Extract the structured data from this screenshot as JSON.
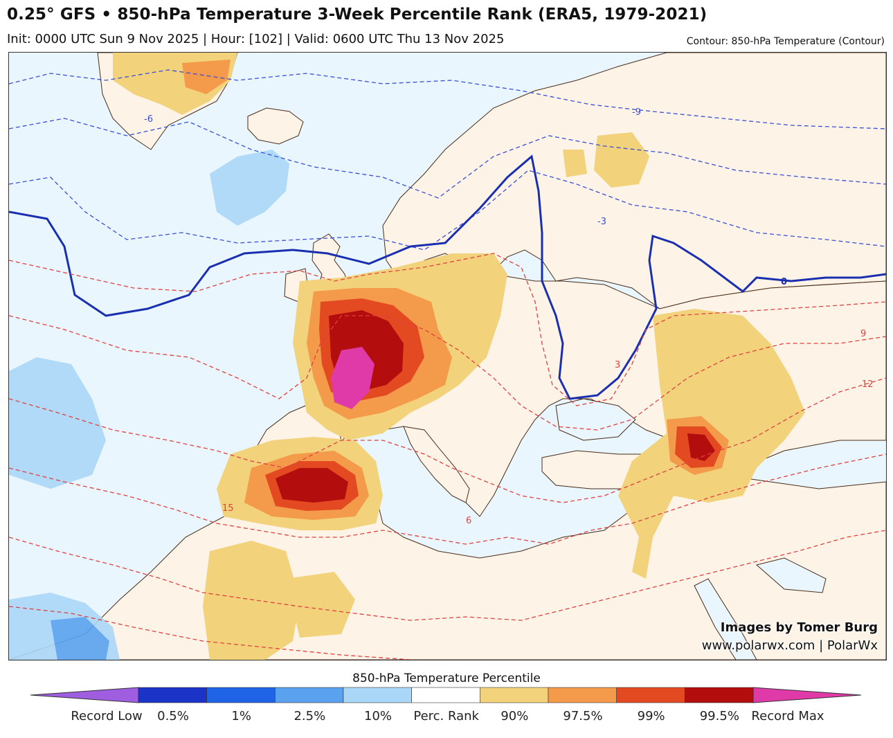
{
  "header": {
    "title": "0.25° GFS • 850-hPa Temperature 3-Week Percentile Rank (ERA5, 1979-2021)",
    "subtitle": "Init: 0000 UTC Sun 9 Nov 2025 | Hour: [102] | Valid: 0600 UTC Thu 13 Nov 2025",
    "contour_note": "Contour: 850-hPa Temperature (Contour)"
  },
  "map": {
    "contour_labels": [
      "-9",
      "-6",
      "-3",
      "0",
      "3",
      "6",
      "9",
      "12",
      "15"
    ],
    "colors": {
      "ocean": "#e9f6fd",
      "land": "#fdf3e6",
      "coast": "#4a2a18",
      "contour_cold": "#3a4fd6",
      "contour_zero": "#1a2fb0",
      "contour_warm": "#e04040"
    }
  },
  "credit": {
    "line1": "Images by Tomer Burg",
    "line2": "www.polarwx.com | PolarWx"
  },
  "colorbar": {
    "title": "850-hPa Temperature Percentile",
    "labels": [
      "Record Low",
      "0.5%",
      "1%",
      "2.5%",
      "10%",
      "Perc. Rank",
      "90%",
      "97.5%",
      "99%",
      "99.5%",
      "Record Max"
    ],
    "segments": [
      "#9f5de0",
      "#1c33c7",
      "#1f63e6",
      "#5aa2ef",
      "#aad7f7",
      "#ffffff",
      "#f2d27b",
      "#f39a4b",
      "#e34a22",
      "#b40d0d",
      "#e03aa8"
    ]
  }
}
